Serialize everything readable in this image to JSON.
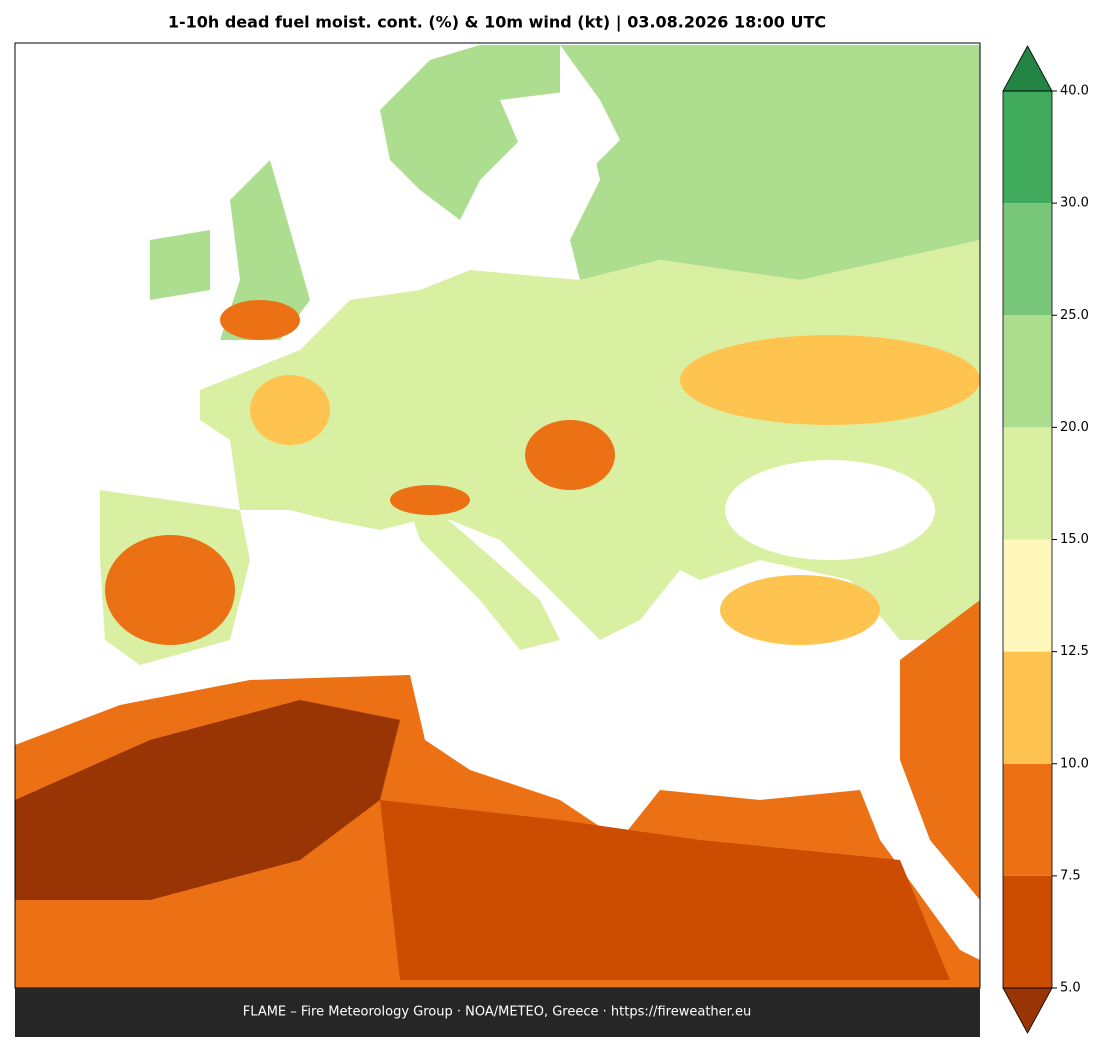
{
  "title": "1-10h dead fuel moist. cont. (%) & 10m wind (kt)  |  03.08.2026 18:00 UTC",
  "footer": "FLAME – Fire Meteorology Group · NOA/METEO, Greece · https://fireweather.eu",
  "colorbar": {
    "ticks": [
      {
        "value": 5,
        "label": "5.0"
      },
      7.5,
      {
        "value": 10,
        "label": "10.0"
      },
      12.5,
      {
        "value": 15,
        "label": "15.0"
      },
      {
        "value": 20,
        "label": "20.0"
      },
      {
        "value": 25,
        "label": "25.0"
      },
      {
        "value": 30,
        "label": "30.0"
      },
      {
        "value": 40,
        "label": "40.0"
      }
    ],
    "colors": [
      "#cc4c02",
      "#ec7014",
      "#fec44f",
      "#fff7bc",
      "#d9f0a3",
      "#addd8e",
      "#78c679",
      "#41ab5d"
    ],
    "under_color": "#993404",
    "over_color": "#238443"
  }
}
